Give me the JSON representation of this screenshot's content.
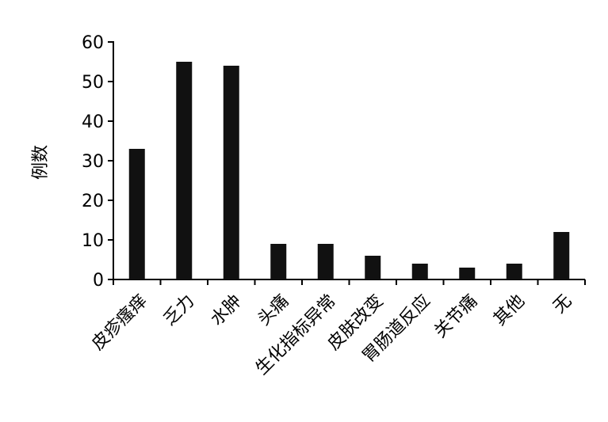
{
  "chart_data": {
    "type": "bar",
    "title": "",
    "xlabel": "",
    "ylabel": "例数",
    "ylim": [
      0,
      60
    ],
    "yticks": [
      0,
      10,
      20,
      30,
      40,
      50,
      60
    ],
    "grid": false,
    "categories": [
      "皮疹瘙痒",
      "乏力",
      "水肿",
      "头痛",
      "生化指标异常",
      "皮肤改变",
      "胃肠道反应",
      "关节痛",
      "其他",
      "无"
    ],
    "values": [
      33,
      55,
      54,
      9,
      9,
      6,
      4,
      3,
      4,
      12
    ],
    "bar_color": "#111111"
  }
}
